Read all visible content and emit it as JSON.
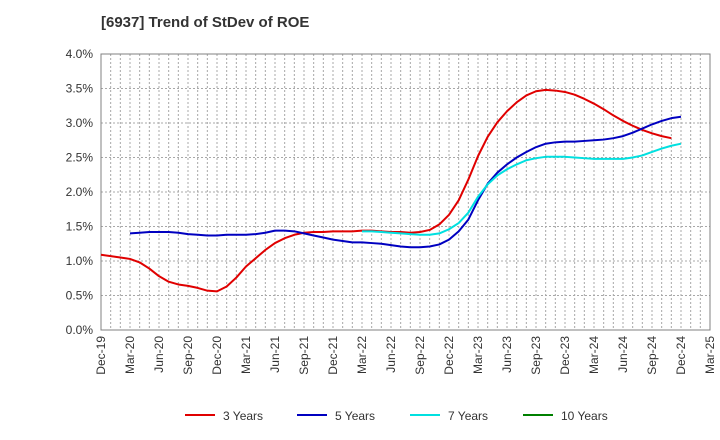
{
  "chart_data": {
    "type": "line",
    "title": "[6937]  Trend of StDev of ROE",
    "xlabel": "",
    "ylabel": "",
    "ylim": [
      0,
      4.0
    ],
    "y_ticks": [
      "0.0%",
      "0.5%",
      "1.0%",
      "1.5%",
      "2.0%",
      "2.5%",
      "3.0%",
      "3.5%",
      "4.0%"
    ],
    "x_ticks": [
      "Dec-19",
      "Mar-20",
      "Jun-20",
      "Sep-20",
      "Dec-20",
      "Mar-21",
      "Jun-21",
      "Sep-21",
      "Dec-21",
      "Mar-22",
      "Jun-22",
      "Sep-22",
      "Dec-22",
      "Mar-23",
      "Jun-23",
      "Sep-23",
      "Dec-23",
      "Mar-24",
      "Jun-24",
      "Sep-24",
      "Dec-24",
      "Mar-25"
    ],
    "grid": true,
    "legend_position": "bottom",
    "x_unit": "month",
    "series": [
      {
        "name": "3 Years",
        "color": "#e00000",
        "points": [
          [
            "Dec-19",
            1.09
          ],
          [
            "Jan-20",
            1.07
          ],
          [
            "Feb-20",
            1.05
          ],
          [
            "Mar-20",
            1.03
          ],
          [
            "Apr-20",
            0.98
          ],
          [
            "May-20",
            0.89
          ],
          [
            "Jun-20",
            0.78
          ],
          [
            "Jul-20",
            0.7
          ],
          [
            "Aug-20",
            0.66
          ],
          [
            "Sep-20",
            0.64
          ],
          [
            "Oct-20",
            0.61
          ],
          [
            "Nov-20",
            0.57
          ],
          [
            "Dec-20",
            0.56
          ],
          [
            "Jan-21",
            0.63
          ],
          [
            "Feb-21",
            0.76
          ],
          [
            "Mar-21",
            0.92
          ],
          [
            "Apr-21",
            1.04
          ],
          [
            "May-21",
            1.16
          ],
          [
            "Jun-21",
            1.26
          ],
          [
            "Jul-21",
            1.33
          ],
          [
            "Aug-21",
            1.38
          ],
          [
            "Sep-21",
            1.41
          ],
          [
            "Oct-21",
            1.42
          ],
          [
            "Nov-21",
            1.42
          ],
          [
            "Dec-21",
            1.43
          ],
          [
            "Jan-22",
            1.43
          ],
          [
            "Feb-22",
            1.43
          ],
          [
            "Mar-22",
            1.44
          ],
          [
            "Apr-22",
            1.44
          ],
          [
            "May-22",
            1.43
          ],
          [
            "Jun-22",
            1.42
          ],
          [
            "Jul-22",
            1.42
          ],
          [
            "Aug-22",
            1.41
          ],
          [
            "Sep-22",
            1.42
          ],
          [
            "Oct-22",
            1.45
          ],
          [
            "Nov-22",
            1.53
          ],
          [
            "Dec-22",
            1.67
          ],
          [
            "Jan-23",
            1.88
          ],
          [
            "Feb-23",
            2.18
          ],
          [
            "Mar-23",
            2.52
          ],
          [
            "Apr-23",
            2.8
          ],
          [
            "May-23",
            3.01
          ],
          [
            "Jun-23",
            3.17
          ],
          [
            "Jul-23",
            3.3
          ],
          [
            "Aug-23",
            3.4
          ],
          [
            "Sep-23",
            3.46
          ],
          [
            "Oct-23",
            3.48
          ],
          [
            "Nov-23",
            3.47
          ],
          [
            "Dec-23",
            3.45
          ],
          [
            "Jan-24",
            3.41
          ],
          [
            "Feb-24",
            3.35
          ],
          [
            "Mar-24",
            3.28
          ],
          [
            "Apr-24",
            3.2
          ],
          [
            "May-24",
            3.11
          ],
          [
            "Jun-24",
            3.03
          ],
          [
            "Jul-24",
            2.96
          ],
          [
            "Aug-24",
            2.9
          ],
          [
            "Sep-24",
            2.85
          ],
          [
            "Oct-24",
            2.81
          ],
          [
            "Nov-24",
            2.78
          ]
        ]
      },
      {
        "name": "5 Years",
        "color": "#0000c0",
        "points": [
          [
            "Mar-20",
            1.4
          ],
          [
            "Apr-20",
            1.41
          ],
          [
            "May-20",
            1.42
          ],
          [
            "Jun-20",
            1.42
          ],
          [
            "Jul-20",
            1.42
          ],
          [
            "Aug-20",
            1.41
          ],
          [
            "Sep-20",
            1.39
          ],
          [
            "Oct-20",
            1.38
          ],
          [
            "Nov-20",
            1.37
          ],
          [
            "Dec-20",
            1.37
          ],
          [
            "Jan-21",
            1.38
          ],
          [
            "Feb-21",
            1.38
          ],
          [
            "Mar-21",
            1.38
          ],
          [
            "Apr-21",
            1.39
          ],
          [
            "May-21",
            1.41
          ],
          [
            "Jun-21",
            1.44
          ],
          [
            "Jul-21",
            1.44
          ],
          [
            "Aug-21",
            1.43
          ],
          [
            "Sep-21",
            1.4
          ],
          [
            "Oct-21",
            1.37
          ],
          [
            "Nov-21",
            1.34
          ],
          [
            "Dec-21",
            1.31
          ],
          [
            "Jan-22",
            1.29
          ],
          [
            "Feb-22",
            1.27
          ],
          [
            "Mar-22",
            1.27
          ],
          [
            "Apr-22",
            1.26
          ],
          [
            "May-22",
            1.25
          ],
          [
            "Jun-22",
            1.23
          ],
          [
            "Jul-22",
            1.21
          ],
          [
            "Aug-22",
            1.2
          ],
          [
            "Sep-22",
            1.2
          ],
          [
            "Oct-22",
            1.21
          ],
          [
            "Nov-22",
            1.24
          ],
          [
            "Dec-22",
            1.31
          ],
          [
            "Jan-23",
            1.43
          ],
          [
            "Feb-23",
            1.6
          ],
          [
            "Mar-23",
            1.88
          ],
          [
            "Apr-23",
            2.12
          ],
          [
            "May-23",
            2.28
          ],
          [
            "Jun-23",
            2.4
          ],
          [
            "Jul-23",
            2.5
          ],
          [
            "Aug-23",
            2.58
          ],
          [
            "Sep-23",
            2.65
          ],
          [
            "Oct-23",
            2.7
          ],
          [
            "Nov-23",
            2.72
          ],
          [
            "Dec-23",
            2.73
          ],
          [
            "Jan-24",
            2.73
          ],
          [
            "Feb-24",
            2.74
          ],
          [
            "Mar-24",
            2.75
          ],
          [
            "Apr-24",
            2.76
          ],
          [
            "May-24",
            2.78
          ],
          [
            "Jun-24",
            2.81
          ],
          [
            "Jul-24",
            2.86
          ],
          [
            "Aug-24",
            2.92
          ],
          [
            "Sep-24",
            2.98
          ],
          [
            "Oct-24",
            3.03
          ],
          [
            "Nov-24",
            3.07
          ],
          [
            "Dec-24",
            3.09
          ]
        ]
      },
      {
        "name": "7 Years",
        "color": "#00e0e0",
        "points": [
          [
            "Mar-22",
            1.43
          ],
          [
            "Apr-22",
            1.43
          ],
          [
            "May-22",
            1.42
          ],
          [
            "Jun-22",
            1.41
          ],
          [
            "Jul-22",
            1.4
          ],
          [
            "Aug-22",
            1.39
          ],
          [
            "Sep-22",
            1.38
          ],
          [
            "Oct-22",
            1.38
          ],
          [
            "Nov-22",
            1.4
          ],
          [
            "Dec-22",
            1.46
          ],
          [
            "Jan-23",
            1.55
          ],
          [
            "Feb-23",
            1.7
          ],
          [
            "Mar-23",
            1.93
          ],
          [
            "Apr-23",
            2.11
          ],
          [
            "May-23",
            2.24
          ],
          [
            "Jun-23",
            2.33
          ],
          [
            "Jul-23",
            2.4
          ],
          [
            "Aug-23",
            2.46
          ],
          [
            "Sep-23",
            2.49
          ],
          [
            "Oct-23",
            2.51
          ],
          [
            "Nov-23",
            2.51
          ],
          [
            "Dec-23",
            2.51
          ],
          [
            "Jan-24",
            2.5
          ],
          [
            "Feb-24",
            2.49
          ],
          [
            "Mar-24",
            2.48
          ],
          [
            "Apr-24",
            2.48
          ],
          [
            "May-24",
            2.48
          ],
          [
            "Jun-24",
            2.48
          ],
          [
            "Jul-24",
            2.5
          ],
          [
            "Aug-24",
            2.53
          ],
          [
            "Sep-24",
            2.58
          ],
          [
            "Oct-24",
            2.63
          ],
          [
            "Nov-24",
            2.67
          ],
          [
            "Dec-24",
            2.7
          ]
        ]
      },
      {
        "name": "10 Years",
        "color": "#008000",
        "points": []
      }
    ]
  }
}
